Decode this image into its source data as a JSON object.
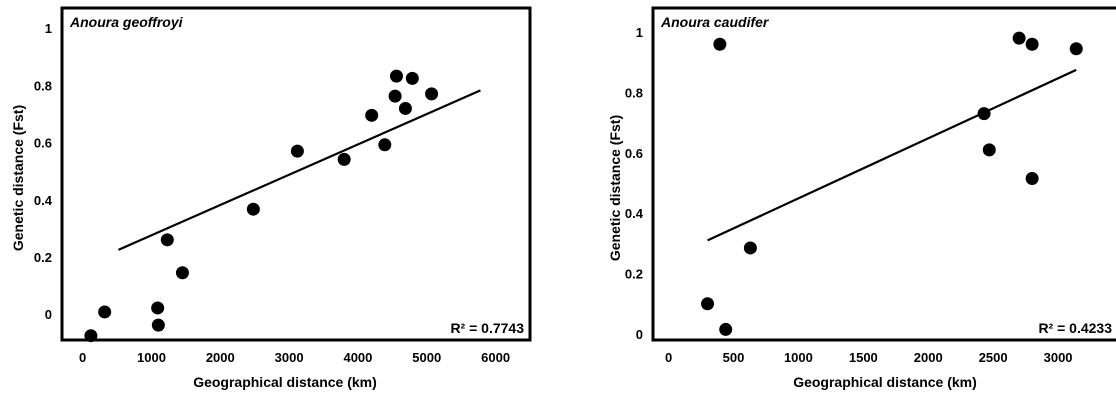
{
  "chart_data": [
    {
      "type": "scatter",
      "title": "Anoura geoffroyi",
      "xlabel": "Geographical distance (km)",
      "ylabel": "Genetic distance (Fst)",
      "annotation": "R² = 0.7743",
      "xlim": [
        -300,
        6500
      ],
      "ylim": [
        -0.09,
        1.07
      ],
      "x_ticks": [
        0,
        1000,
        2000,
        3000,
        4000,
        5000,
        6000
      ],
      "x_tick_labels": [
        "0",
        "1000",
        "2000",
        "3000",
        "4000",
        "5000",
        "6000"
      ],
      "y_ticks": [
        0,
        0.2,
        0.4,
        0.6,
        0.8,
        1
      ],
      "y_tick_labels": [
        "0",
        "0.2",
        "0.4",
        "0.6",
        "0.8",
        "1"
      ],
      "grid": false,
      "points": [
        {
          "x": 120,
          "y": -0.075
        },
        {
          "x": 320,
          "y": 0.008
        },
        {
          "x": 1090,
          "y": 0.022
        },
        {
          "x": 1100,
          "y": -0.038
        },
        {
          "x": 1230,
          "y": 0.26
        },
        {
          "x": 1450,
          "y": 0.145
        },
        {
          "x": 2480,
          "y": 0.367
        },
        {
          "x": 3120,
          "y": 0.57
        },
        {
          "x": 3800,
          "y": 0.541
        },
        {
          "x": 4200,
          "y": 0.695
        },
        {
          "x": 4390,
          "y": 0.592
        },
        {
          "x": 4540,
          "y": 0.762
        },
        {
          "x": 4560,
          "y": 0.832
        },
        {
          "x": 4690,
          "y": 0.719
        },
        {
          "x": 4790,
          "y": 0.824
        },
        {
          "x": 5070,
          "y": 0.77
        }
      ],
      "trendline": {
        "x": [
          520,
          5780
        ],
        "y": [
          0.225,
          0.782
        ]
      }
    },
    {
      "type": "scatter",
      "title": "Anoura caudifer",
      "xlabel": "Geographical distance (km)",
      "ylabel": "Genetic distance (Fst)",
      "annotation": "R² = 0.4233",
      "xlim": [
        -120,
        3500
      ],
      "ylim": [
        -0.02,
        1.08
      ],
      "x_ticks": [
        0,
        500,
        1000,
        1500,
        2000,
        2500,
        3000
      ],
      "x_tick_labels": [
        "0",
        "500",
        "1000",
        "1500",
        "2000",
        "2500",
        "3000"
      ],
      "y_ticks": [
        0,
        0.2,
        0.4,
        0.6,
        0.8,
        1
      ],
      "y_tick_labels": [
        "0",
        "0.2",
        "0.4",
        "0.6",
        "0.8",
        "1"
      ],
      "grid": false,
      "points": [
        {
          "x": 300,
          "y": 0.1
        },
        {
          "x": 395,
          "y": 0.96
        },
        {
          "x": 440,
          "y": 0.015
        },
        {
          "x": 630,
          "y": 0.285
        },
        {
          "x": 2430,
          "y": 0.73
        },
        {
          "x": 2470,
          "y": 0.61
        },
        {
          "x": 2700,
          "y": 0.98
        },
        {
          "x": 2800,
          "y": 0.96
        },
        {
          "x": 2800,
          "y": 0.515
        },
        {
          "x": 3140,
          "y": 0.945
        }
      ],
      "trendline": {
        "x": [
          300,
          3140
        ],
        "y": [
          0.31,
          0.875
        ]
      }
    }
  ]
}
